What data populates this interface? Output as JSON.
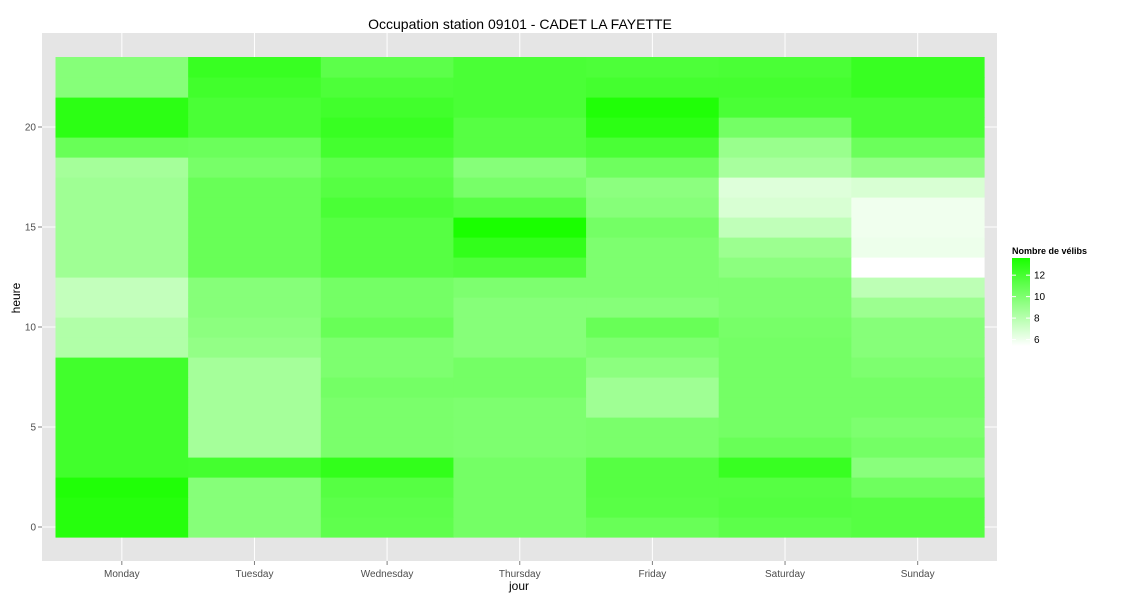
{
  "chart_data": {
    "type": "heatmap",
    "title": "Occupation station 09101 - CADET LA FAYETTE",
    "xlabel": "jour",
    "ylabel": "heure",
    "x_categories": [
      "Monday",
      "Tuesday",
      "Wednesday",
      "Thursday",
      "Friday",
      "Saturday",
      "Sunday"
    ],
    "y_hours": [
      0,
      1,
      2,
      3,
      4,
      5,
      6,
      7,
      8,
      9,
      10,
      11,
      12,
      13,
      14,
      15,
      16,
      17,
      18,
      19,
      20,
      21,
      22,
      23
    ],
    "y_ticks": [
      0,
      5,
      10,
      15,
      20
    ],
    "ylim": [
      -0.5,
      23.5
    ],
    "values": [
      [
        13.2,
        10.0,
        11.3,
        10.6,
        11.0,
        11.4,
        11.6
      ],
      [
        13.2,
        10.0,
        11.4,
        10.6,
        11.5,
        11.7,
        11.6
      ],
      [
        13.4,
        10.0,
        11.6,
        10.6,
        11.6,
        11.6,
        10.8
      ],
      [
        12.3,
        12.2,
        12.8,
        10.6,
        11.6,
        12.6,
        9.9
      ],
      [
        12.3,
        9.0,
        10.4,
        10.3,
        10.4,
        11.0,
        10.6
      ],
      [
        12.3,
        9.0,
        10.4,
        10.3,
        10.4,
        10.6,
        10.3
      ],
      [
        12.3,
        9.0,
        10.4,
        10.3,
        9.2,
        10.6,
        10.6
      ],
      [
        12.3,
        9.0,
        10.6,
        10.6,
        9.2,
        10.6,
        10.6
      ],
      [
        12.3,
        9.0,
        10.3,
        10.6,
        9.8,
        10.6,
        10.3
      ],
      [
        8.6,
        9.6,
        10.3,
        10.0,
        10.3,
        10.6,
        10.0
      ],
      [
        8.6,
        9.8,
        11.0,
        10.0,
        11.0,
        10.5,
        10.0
      ],
      [
        8.0,
        10.0,
        10.6,
        10.0,
        10.0,
        10.3,
        9.3
      ],
      [
        8.0,
        10.0,
        10.6,
        10.3,
        10.3,
        10.3,
        8.2
      ],
      [
        9.2,
        11.0,
        11.6,
        11.8,
        10.3,
        9.8,
        6.0
      ],
      [
        9.2,
        11.0,
        11.6,
        12.8,
        10.3,
        9.3,
        6.6
      ],
      [
        9.2,
        11.0,
        11.6,
        13.6,
        10.6,
        8.1,
        6.5
      ],
      [
        9.2,
        11.0,
        12.0,
        11.6,
        10.0,
        7.3,
        6.5
      ],
      [
        9.2,
        11.0,
        11.6,
        10.5,
        9.8,
        7.1,
        7.3
      ],
      [
        9.0,
        10.5,
        11.3,
        10.0,
        10.8,
        8.9,
        9.6
      ],
      [
        11.0,
        10.9,
        12.2,
        11.6,
        12.0,
        9.4,
        10.9
      ],
      [
        13.0,
        12.0,
        12.6,
        11.6,
        13.0,
        10.6,
        12.0
      ],
      [
        13.0,
        12.0,
        12.3,
        12.0,
        13.4,
        12.0,
        12.0
      ],
      [
        10.0,
        12.3,
        11.9,
        12.0,
        12.2,
        12.2,
        12.6
      ],
      [
        10.0,
        12.6,
        11.4,
        12.0,
        11.9,
        12.0,
        12.6
      ]
    ],
    "color_scale": {
      "low": "#ffffff",
      "high": "#1aff00",
      "min": 6,
      "max": 13.6
    },
    "legend": {
      "title": "Nombre de vélibs",
      "ticks": [
        6,
        8,
        10,
        12
      ],
      "placement": "right"
    },
    "panel_background": "#e5e5e5",
    "grid": true
  }
}
